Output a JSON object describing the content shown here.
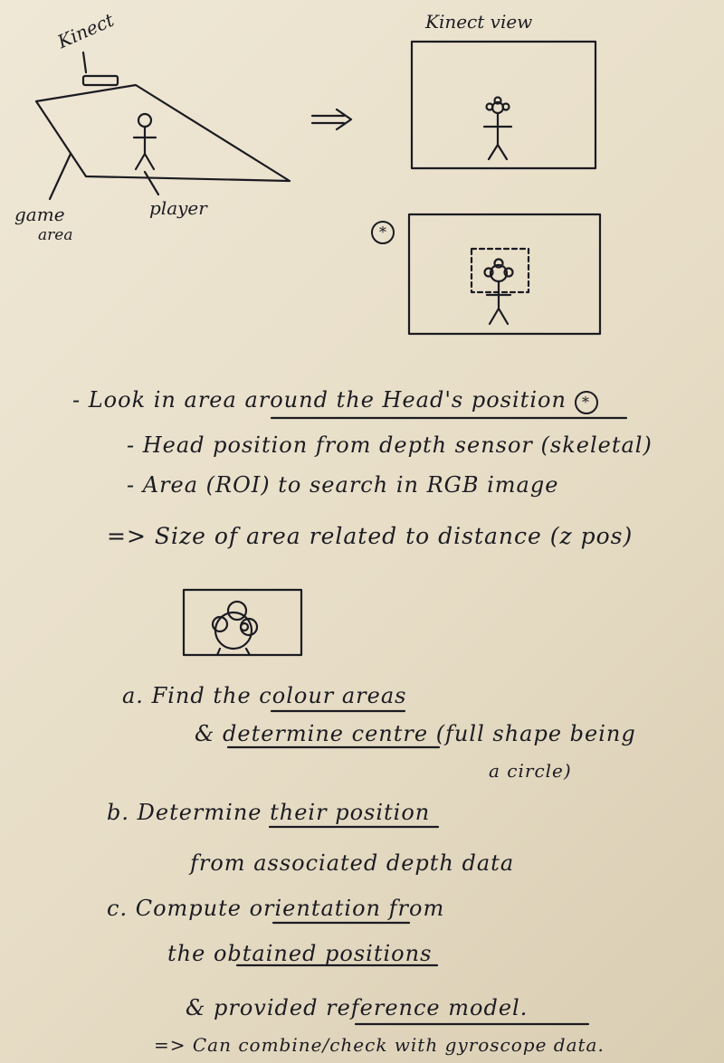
{
  "sketch_labels": {
    "kinect": "Kinect",
    "game_area": "game",
    "game_area_2": "area",
    "player": "player",
    "kinect_view": "Kinect view",
    "marker": "*"
  },
  "notes": {
    "line1_a": "- Look in area",
    "line1_b": "around the Head's position",
    "line2": "- Head position from depth sensor (skeletal)",
    "line3": "- Area (ROI) to search in RGB image",
    "line4": "=> Size of area related to distance (z pos)",
    "a_1": "a. Find the",
    "a_1u": "colour areas",
    "a_2a": "&",
    "a_2u": "determine centre",
    "a_2b": "(full shape being",
    "a_3": "a circle)",
    "b_1": "b. Determine",
    "b_1u": "their position",
    "b_2": "from associated depth data",
    "c_1": "c. Compute",
    "c_1u": "orientation",
    "c_1b": "from",
    "c_2a": "the",
    "c_2u": "obtained positions",
    "c_3a": "& provided",
    "c_3u": "reference model.",
    "c_4": "=> Can combine/check with gyroscope data."
  }
}
